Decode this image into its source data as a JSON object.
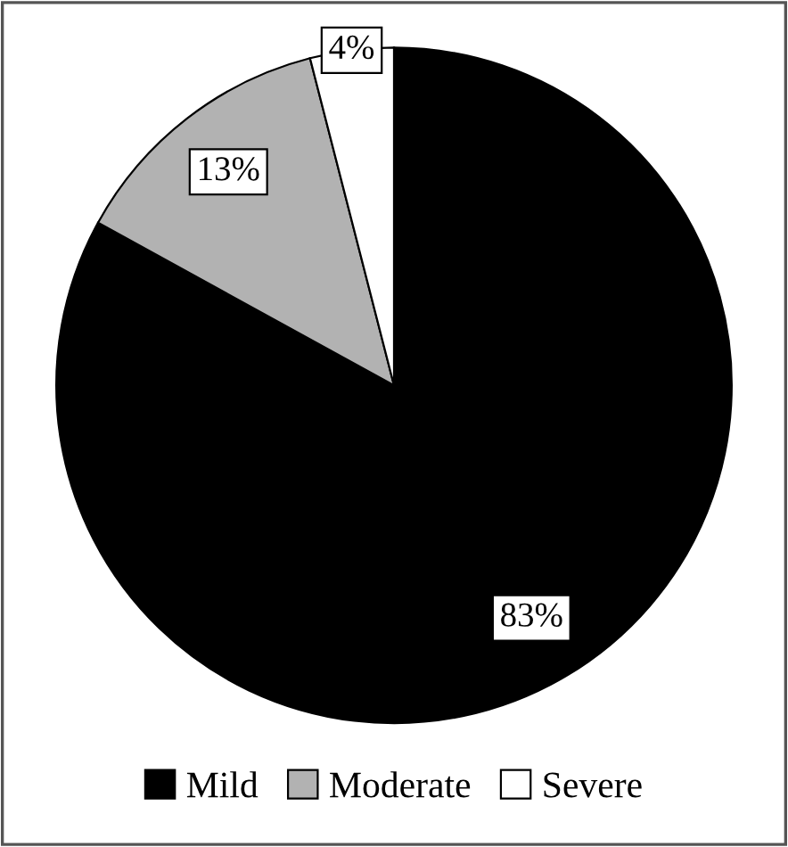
{
  "chart_data": {
    "type": "pie",
    "categories": [
      "Mild",
      "Moderate",
      "Severe"
    ],
    "values": [
      83,
      13,
      4
    ],
    "colors": [
      "#000000",
      "#b2b2b2",
      "#ffffff"
    ],
    "value_labels": [
      "83%",
      "13%",
      "4%"
    ],
    "legend": "bottom"
  }
}
